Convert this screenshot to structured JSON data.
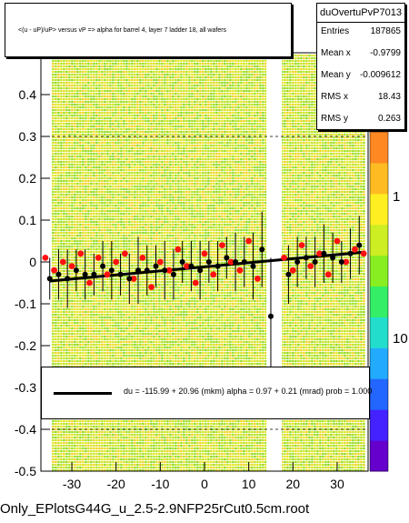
{
  "title": "<(u - uP)/uP> versus   vP => alpha for barrel 4, layer 7 ladder 18, all wafers",
  "stats": {
    "name": "duOvertuPvP7013",
    "rows": [
      {
        "key": "Entries",
        "value": "187865"
      },
      {
        "key": "Mean x",
        "value": "-0.9799"
      },
      {
        "key": "Mean y",
        "value": "-0.009612"
      },
      {
        "key": "RMS x",
        "value": "18.43"
      },
      {
        "key": "RMS y",
        "value": "0.263"
      }
    ]
  },
  "fit_text": "du = -115.99 + 20.96 (mkm) alpha =    0.97 +  0.21 (mrad) prob = 1.000",
  "file_title": "Only_EPlotsG44G_u_2.5-2.9NFP25rCut0.5cm.root",
  "chart_data": {
    "type": "scatter",
    "title": "<(u - uP)/uP> versus   vP => alpha for barrel 4, layer 7 ladder 18, all wafers",
    "xlim": [
      -37,
      37
    ],
    "ylim": [
      -0.5,
      0.5
    ],
    "x_ticks": [
      -30,
      -20,
      -10,
      0,
      10,
      20,
      30
    ],
    "y_ticks": [
      -0.5,
      -0.4,
      -0.3,
      -0.2,
      -0.1,
      0,
      0.1,
      0.2,
      0.3,
      0.4
    ],
    "z_ticks": [
      "1",
      "10"
    ],
    "gap_x": [
      14,
      17.5
    ],
    "background": "2D histogram, mostly green/yellow, colz palette",
    "fit_line": {
      "intercept": -0.0116,
      "slope": 0.00097
    },
    "black_points": {
      "x": [
        -35,
        -33,
        -31,
        -29,
        -27,
        -25,
        -23,
        -21,
        -19,
        -17,
        -15,
        -13,
        -11,
        -9,
        -7,
        -5,
        -3,
        -1,
        1,
        3,
        5,
        7,
        9,
        11,
        13,
        15,
        19,
        21,
        23,
        25,
        27,
        29,
        31,
        33,
        35
      ],
      "y": [
        -0.04,
        -0.03,
        -0.04,
        -0.02,
        -0.03,
        -0.03,
        -0.01,
        -0.02,
        -0.03,
        -0.04,
        -0.02,
        -0.02,
        -0.01,
        -0.02,
        -0.03,
        0.0,
        -0.01,
        -0.02,
        0.0,
        -0.01,
        0.01,
        0.0,
        0.0,
        -0.01,
        0.03,
        -0.13,
        -0.03,
        0.0,
        0.01,
        0.0,
        0.02,
        0.01,
        0.0,
        0.02,
        0.04
      ],
      "err": [
        0.05,
        0.06,
        0.07,
        0.05,
        0.06,
        0.05,
        0.06,
        0.07,
        0.05,
        0.06,
        0.08,
        0.06,
        0.05,
        0.07,
        0.06,
        0.05,
        0.06,
        0.07,
        0.05,
        0.06,
        0.05,
        0.07,
        0.06,
        0.08,
        0.09,
        0.14,
        0.07,
        0.06,
        0.05,
        0.06,
        0.07,
        0.06,
        0.05,
        0.06,
        0.07
      ]
    },
    "red_points": {
      "x": [
        -36,
        -34,
        -32,
        -30,
        -28,
        -26,
        -24,
        -22,
        -20,
        -18,
        -16,
        -14,
        -12,
        -10,
        -8,
        -6,
        -4,
        -2,
        0,
        2,
        4,
        6,
        8,
        10,
        12,
        18,
        20,
        22,
        24,
        26,
        28,
        30,
        32,
        34,
        36
      ],
      "y": [
        0.01,
        -0.02,
        0.0,
        -0.01,
        0.02,
        -0.05,
        0.01,
        -0.03,
        0.0,
        0.02,
        -0.04,
        0.01,
        -0.06,
        0.0,
        -0.02,
        0.03,
        -0.01,
        -0.05,
        0.02,
        -0.03,
        0.04,
        0.0,
        -0.02,
        0.05,
        -0.04,
        0.01,
        -0.02,
        0.04,
        -0.01,
        0.02,
        -0.03,
        0.05,
        0.0,
        0.03,
        0.02
      ]
    }
  }
}
